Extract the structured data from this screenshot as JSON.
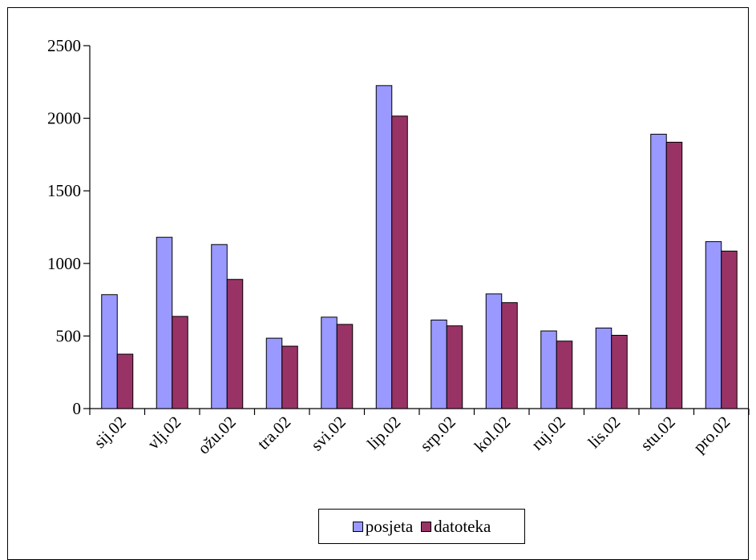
{
  "chart_data": {
    "type": "bar",
    "categories": [
      "sij.02",
      "vlj.02",
      "ožu.02",
      "tra.02",
      "svi.02",
      "lip.02",
      "srp.02",
      "kol.02",
      "ruj.02",
      "lis.02",
      "stu.02",
      "pro.02"
    ],
    "series": [
      {
        "name": "posjeta",
        "color": "#9999FF",
        "values": [
          785,
          1180,
          1130,
          485,
          630,
          2225,
          610,
          790,
          535,
          555,
          1890,
          1150
        ]
      },
      {
        "name": "datoteka",
        "color": "#993366",
        "values": [
          375,
          635,
          890,
          430,
          580,
          2015,
          570,
          730,
          465,
          505,
          1835,
          1085
        ]
      }
    ],
    "ylim": [
      0,
      2500
    ],
    "yticks": [
      0,
      500,
      1000,
      1500,
      2000,
      2500
    ],
    "grid": false,
    "legend_position": "bottom"
  }
}
